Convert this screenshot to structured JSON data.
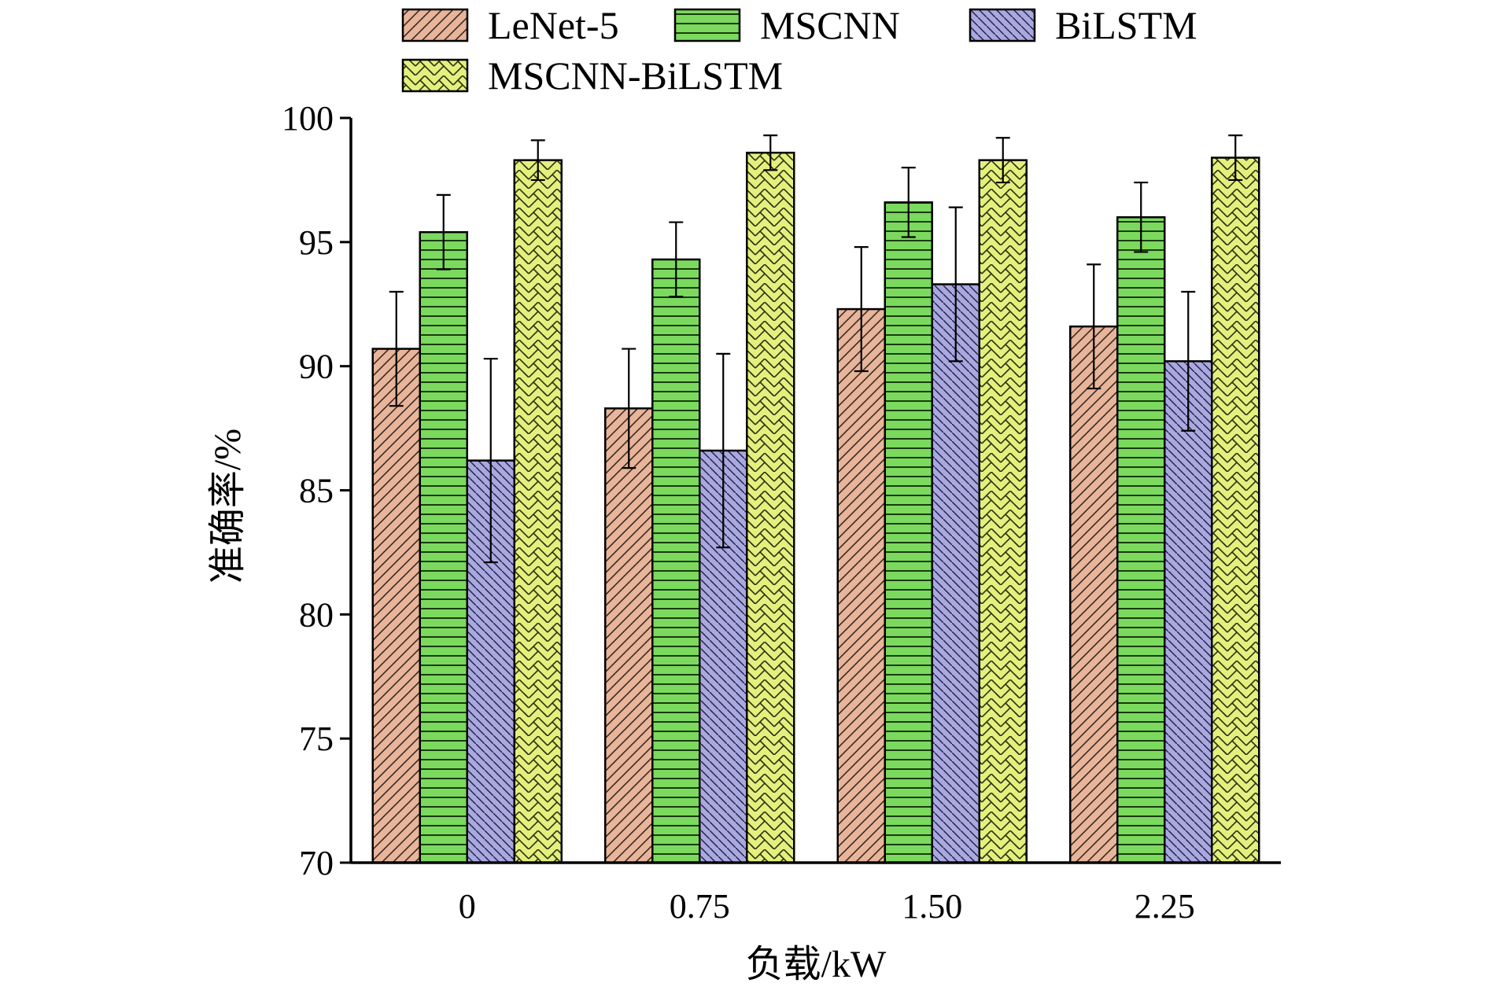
{
  "chart_data": {
    "type": "bar",
    "title": "",
    "xlabel": "负载/kW",
    "ylabel": "准确率/%",
    "ylim": [
      70,
      100
    ],
    "yticks": [
      70,
      75,
      80,
      85,
      90,
      95,
      100
    ],
    "categories": [
      "0",
      "0.75",
      "1.50",
      "2.25"
    ],
    "grid": false,
    "legend_position": "top",
    "series": [
      {
        "name": "LeNet-5",
        "values": [
          90.7,
          88.3,
          92.3,
          91.6
        ],
        "errors": [
          2.3,
          2.4,
          2.5,
          2.5
        ],
        "color": "#e8b59a",
        "pattern": "diagonal"
      },
      {
        "name": "MSCNN",
        "values": [
          95.4,
          94.3,
          96.6,
          96.0
        ],
        "errors": [
          1.5,
          1.5,
          1.4,
          1.4
        ],
        "color": "#7bd95e",
        "pattern": "horizontal"
      },
      {
        "name": "BiLSTM",
        "values": [
          86.2,
          86.6,
          93.3,
          90.2
        ],
        "errors": [
          4.1,
          3.9,
          3.1,
          2.8
        ],
        "color": "#a9a8df",
        "pattern": "diagonal-dense"
      },
      {
        "name": "MSCNN-BiLSTM",
        "values": [
          98.3,
          98.6,
          98.3,
          98.4
        ],
        "errors": [
          0.8,
          0.7,
          0.9,
          0.9
        ],
        "color": "#e4f07e",
        "pattern": "crosshatch"
      }
    ]
  }
}
